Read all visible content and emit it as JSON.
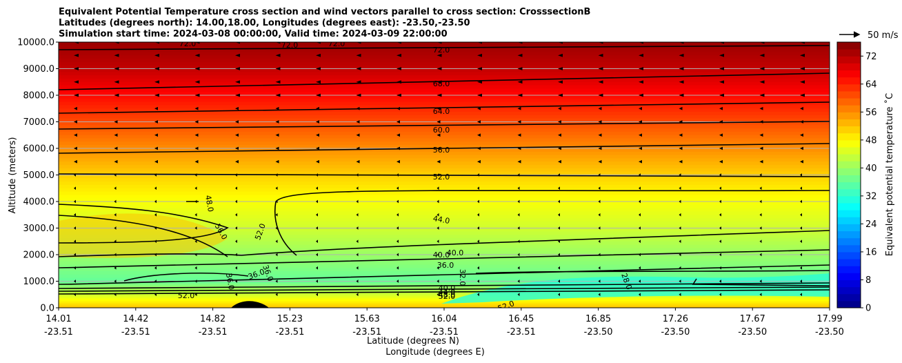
{
  "chart_data": {
    "type": "heatmap",
    "title_lines": [
      "Equivalent Potential Temperature cross section and wind vectors parallel to cross section: CrosssectionB",
      "Latitudes (degrees north): 14.00,18.00, Longitudes (degrees east): -23.50,-23.50",
      "Simulation start time: 2024-03-08 00:00:00, Valid time: 2024-03-09 22:00:00"
    ],
    "ylabel": "Altitude (meters)",
    "xlabel_lat": "Latitude (degrees N)",
    "xlabel_lon": "Longitude (degrees E)",
    "ylim": [
      0,
      10000
    ],
    "yticks": [
      "0.0",
      "1000.0",
      "2000.0",
      "3000.0",
      "4000.0",
      "5000.0",
      "6000.0",
      "7000.0",
      "8000.0",
      "9000.0",
      "10000.0"
    ],
    "xticks": [
      {
        "lat": "14.01",
        "lon": "-23.51"
      },
      {
        "lat": "14.42",
        "lon": "-23.51"
      },
      {
        "lat": "14.82",
        "lon": "-23.51"
      },
      {
        "lat": "15.23",
        "lon": "-23.51"
      },
      {
        "lat": "15.63",
        "lon": "-23.51"
      },
      {
        "lat": "16.04",
        "lon": "-23.51"
      },
      {
        "lat": "16.45",
        "lon": "-23.51"
      },
      {
        "lat": "16.85",
        "lon": "-23.50"
      },
      {
        "lat": "17.26",
        "lon": "-23.50"
      },
      {
        "lat": "17.67",
        "lon": "-23.50"
      },
      {
        "lat": "17.99",
        "lon": "-23.50"
      }
    ],
    "colorbar": {
      "label": "Equivalent potential temperature ˚C",
      "ticks": [
        "0",
        "8",
        "16",
        "24",
        "32",
        "40",
        "48",
        "56",
        "64",
        "72"
      ],
      "range": [
        0,
        76
      ],
      "levels": [
        0,
        2,
        4,
        6,
        8,
        10,
        12,
        14,
        16,
        18,
        20,
        22,
        24,
        26,
        28,
        30,
        32,
        34,
        36,
        38,
        40,
        42,
        44,
        46,
        48,
        50,
        52,
        54,
        56,
        58,
        60,
        62,
        64,
        66,
        68,
        70,
        72,
        74,
        76
      ]
    },
    "wind_key": {
      "label": "50 m/s",
      "speed": 50
    },
    "contour_labels": [
      "72.0",
      "72.0",
      "72.0",
      "72.0",
      "68.0",
      "64.0",
      "60.0",
      "56.0",
      "52.0",
      "48.0",
      "56.0",
      "52.0",
      "44.0",
      "40.0",
      "40.0",
      "36.0",
      "36.0",
      "36.0",
      "36.0",
      "32.0",
      "28.0",
      "40.0",
      "44.0",
      "48.0",
      "52.0",
      "52.0",
      "52.0"
    ],
    "layers": [
      {
        "alt": 10000,
        "value": 74
      },
      {
        "alt": 9000,
        "value": 71
      },
      {
        "alt": 8000,
        "value": 66
      },
      {
        "alt": 7000,
        "value": 61
      },
      {
        "alt": 6000,
        "value": 56
      },
      {
        "alt": 5000,
        "value": 51
      },
      {
        "alt": 4000,
        "value": 47
      },
      {
        "alt": 3000,
        "value": 44
      },
      {
        "alt": 2000,
        "value": 40
      },
      {
        "alt": 1000,
        "value": 36
      },
      {
        "alt": 500,
        "value": 44
      },
      {
        "alt": 0,
        "value": 52
      }
    ]
  }
}
